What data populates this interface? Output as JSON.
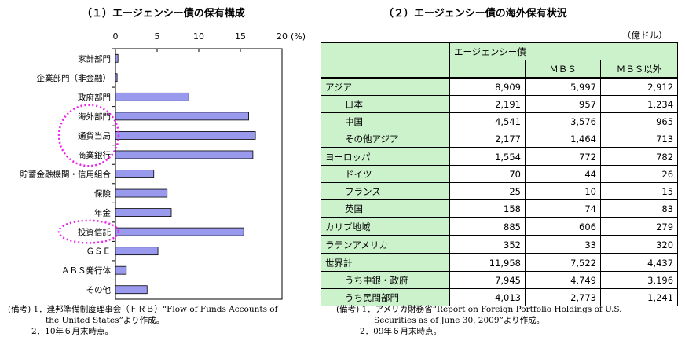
{
  "left": {
    "title": "（１）エージェンシー債の保有構成",
    "chart_data": {
      "type": "bar",
      "orientation": "horizontal",
      "categories": [
        "家計部門",
        "企業部門（非金融）",
        "政府部門",
        "海外部門",
        "通貨当局",
        "商業銀行",
        "貯蓄金融機関・信用組合",
        "保険",
        "年金",
        "投資信託",
        "ＧＳＥ",
        "ＡＢＳ発行体",
        "その他"
      ],
      "values": [
        0.3,
        0.2,
        8.8,
        16.0,
        16.8,
        16.5,
        4.6,
        6.2,
        6.7,
        15.4,
        5.1,
        1.3,
        3.8
      ],
      "xlim": [
        0,
        20
      ],
      "ticks": [
        "0",
        "5",
        "10",
        "15",
        "20"
      ],
      "unit": "(%)",
      "bar_color": "#9999ee",
      "highlight_color": "#ee22ee",
      "highlighted": [
        "海外部門",
        "通貨当局",
        "商業銀行",
        "投資信託"
      ]
    },
    "notes": [
      "(備考) 1．連邦準備制度理事会（ＦＲＢ）“Flow of Funds Accounts of",
      "the United States”より作成。",
      "2．10年６月末時点。"
    ]
  },
  "right": {
    "title": "（２）エージェンシー債の海外保有状況",
    "unit": "（億ドル）",
    "header_top": "エージェンシー債",
    "header_cols": [
      "ＭＢＳ",
      "ＭＢＳ以外"
    ],
    "rows": [
      {
        "label": "アジア",
        "v": [
          "8,909",
          "5,997",
          "2,912"
        ],
        "indent": false,
        "group": true
      },
      {
        "label": "日本",
        "v": [
          "2,191",
          "957",
          "1,234"
        ],
        "indent": true,
        "group": false
      },
      {
        "label": "中国",
        "v": [
          "4,541",
          "3,576",
          "965"
        ],
        "indent": true,
        "group": false
      },
      {
        "label": "その他アジア",
        "v": [
          "2,177",
          "1,464",
          "713"
        ],
        "indent": true,
        "group": false
      },
      {
        "label": "ヨーロッパ",
        "v": [
          "1,554",
          "772",
          "782"
        ],
        "indent": false,
        "group": true
      },
      {
        "label": "ドイツ",
        "v": [
          "70",
          "44",
          "26"
        ],
        "indent": true,
        "group": false
      },
      {
        "label": "フランス",
        "v": [
          "25",
          "10",
          "15"
        ],
        "indent": true,
        "group": false
      },
      {
        "label": "英国",
        "v": [
          "158",
          "74",
          "83"
        ],
        "indent": true,
        "group": false
      },
      {
        "label": "カリブ地域",
        "v": [
          "885",
          "606",
          "279"
        ],
        "indent": false,
        "group": true
      },
      {
        "label": "ラテンアメリカ",
        "v": [
          "352",
          "33",
          "320"
        ],
        "indent": false,
        "group": true
      },
      {
        "label": "世界計",
        "v": [
          "11,958",
          "7,522",
          "4,437"
        ],
        "indent": false,
        "group": true
      },
      {
        "label": "うち中銀・政府",
        "v": [
          "7,945",
          "4,749",
          "3,196"
        ],
        "indent": true,
        "group": false
      },
      {
        "label": "うち民間部門",
        "v": [
          "4,013",
          "2,773",
          "1,241"
        ],
        "indent": true,
        "group": false
      }
    ],
    "header_bg": "#ccf2cc",
    "notes": [
      "(備考) 1．アメリカ財務省“Report on Foreign Portfolio Holdings of U.S.",
      "Securities as of June 30, 2009”より作成。",
      "2．09年６月末時点。"
    ]
  }
}
